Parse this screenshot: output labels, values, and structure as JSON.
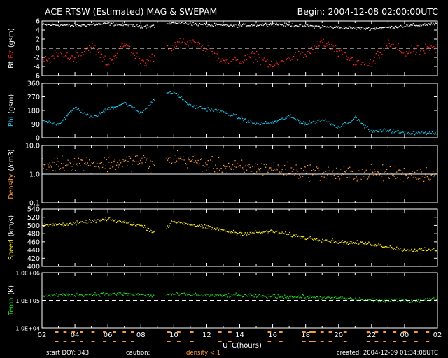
{
  "header": {
    "title": "ACE RTSW (Estimated) MAG & SWEPAM",
    "begin": "Begin: 2004-12-08 02:00:00UTC"
  },
  "footer": {
    "start_doy": "start DOY: 343",
    "caution": "caution:",
    "density_note": "density < 1",
    "created": "created: 2004-12-09 01:34:06UTC",
    "xlabel": "UTC(hours)"
  },
  "colors": {
    "background": "#000000",
    "axes": "#ffffff",
    "bt": "#ffffff",
    "bz": "#ff2a2a",
    "phi": "#22c6f0",
    "density": "#ff9a3c",
    "speed": "#ffee22",
    "temp": "#22dd22",
    "caution": "#ff9a3c"
  },
  "chart_data": [
    {
      "type": "scatter",
      "panel": "mag",
      "ylabel_parts": [
        "Bt",
        "Bz",
        "(gsm)"
      ],
      "ylim": [
        -6,
        6
      ],
      "yticks": [
        -6,
        -4,
        -2,
        0,
        2,
        4,
        6
      ],
      "reference_line": 0,
      "xlim": [
        0,
        24
      ],
      "series": [
        {
          "name": "Bt",
          "color_key": "bt",
          "noise": 0.5,
          "x": [
            0,
            2,
            4,
            6,
            7,
            8,
            10,
            12,
            14,
            16,
            18,
            20,
            22,
            24
          ],
          "y": [
            5.2,
            5.0,
            5.4,
            4.8,
            4.9,
            5.6,
            5.1,
            5.0,
            5.3,
            4.9,
            4.6,
            4.3,
            4.9,
            5.4
          ]
        },
        {
          "name": "Bz",
          "color_key": "bz",
          "noise": 1.7,
          "x": [
            0,
            1,
            2,
            3,
            4,
            5,
            6,
            7,
            8,
            9,
            10,
            11,
            12,
            13,
            14,
            15,
            16,
            17,
            18,
            19,
            20,
            21,
            22,
            23,
            24
          ],
          "y": [
            -3.0,
            -1.5,
            -2.0,
            0.5,
            -3.5,
            1.0,
            -3.0,
            -2.0,
            0.5,
            1.5,
            -0.5,
            -2.5,
            -3.0,
            -1.5,
            -4.0,
            -2.0,
            -1.5,
            1.5,
            -1.0,
            -3.0,
            -3.5,
            1.0,
            -1.0,
            -0.5,
            0.0
          ]
        }
      ]
    },
    {
      "type": "scatter",
      "panel": "phi",
      "ylabel_parts": [
        "Phi",
        "(gsm)"
      ],
      "ylim": [
        0,
        360
      ],
      "yticks": [
        0,
        90,
        180,
        270,
        360
      ],
      "xlim": [
        0,
        24
      ],
      "series": [
        {
          "name": "Phi",
          "color_key": "phi",
          "noise": 18,
          "x": [
            0,
            1,
            2,
            3,
            4,
            5,
            6,
            7,
            8,
            9,
            10,
            11,
            12,
            13,
            14,
            15,
            16,
            17,
            18,
            19,
            20,
            21,
            22,
            23,
            24
          ],
          "y": [
            110,
            90,
            200,
            130,
            190,
            230,
            160,
            280,
            300,
            210,
            190,
            170,
            130,
            90,
            100,
            140,
            90,
            120,
            70,
            130,
            40,
            50,
            30,
            35,
            30
          ]
        }
      ]
    },
    {
      "type": "scatter",
      "panel": "density",
      "ylabel_parts": [
        "Density",
        "(/cm3)"
      ],
      "yscale": "log",
      "ylim": [
        0.1,
        10
      ],
      "yticks": [
        0.1,
        1.0,
        10.0
      ],
      "ytick_labels": [
        "0.1",
        "1.0",
        "10.0"
      ],
      "reference_line": 1.0,
      "xlim": [
        0,
        24
      ],
      "series": [
        {
          "name": "Density",
          "color_key": "density",
          "noise": 0.2,
          "x": [
            0,
            2,
            4,
            6,
            7,
            8,
            10,
            12,
            14,
            16,
            18,
            20,
            22,
            24
          ],
          "y": [
            2.0,
            2.5,
            2.2,
            3.0,
            1.5,
            4.0,
            2.0,
            1.6,
            1.5,
            1.2,
            1.0,
            1.1,
            1.0,
            1.0
          ]
        }
      ]
    },
    {
      "type": "scatter",
      "panel": "speed",
      "ylabel_parts": [
        "Speed",
        "(km/s)"
      ],
      "ylim": [
        400,
        540
      ],
      "yticks": [
        400,
        420,
        440,
        460,
        480,
        500,
        520,
        540
      ],
      "xlim": [
        0,
        24
      ],
      "series": [
        {
          "name": "Speed",
          "color_key": "speed",
          "noise": 7,
          "x": [
            0,
            2,
            4,
            6,
            7,
            8,
            10,
            12,
            14,
            16,
            18,
            20,
            22,
            24
          ],
          "y": [
            500,
            505,
            515,
            500,
            480,
            510,
            495,
            480,
            485,
            470,
            460,
            455,
            440,
            440
          ]
        }
      ]
    },
    {
      "type": "scatter",
      "panel": "temp",
      "ylabel_parts": [
        "Temp",
        "(K)"
      ],
      "yscale": "log",
      "ylim": [
        10000,
        1000000
      ],
      "yticks": [
        10000,
        100000,
        1000000
      ],
      "ytick_labels": [
        "1.0E+04",
        "1.0E+05",
        "1.0E+06"
      ],
      "reference_line": 100000,
      "xlim": [
        0,
        24
      ],
      "series": [
        {
          "name": "Temp",
          "color_key": "temp",
          "noise": 0.05,
          "x": [
            0,
            2,
            4,
            6,
            7,
            8,
            10,
            12,
            14,
            16,
            18,
            20,
            22,
            24
          ],
          "y": [
            150000,
            160000,
            170000,
            160000,
            140000,
            170000,
            150000,
            150000,
            140000,
            130000,
            120000,
            100000,
            95000,
            110000
          ]
        }
      ]
    }
  ],
  "x_axis": {
    "ticks": [
      0,
      2,
      4,
      6,
      8,
      10,
      12,
      14,
      16,
      18,
      20,
      22,
      24
    ],
    "tick_labels": [
      "02",
      "04",
      "06",
      "08",
      "10",
      "12",
      "14",
      "16",
      "18",
      "20",
      "22",
      "00",
      "02"
    ]
  },
  "density_caution_hours": [
    [
      0.8,
      1.0
    ],
    [
      1.3,
      1.5
    ],
    [
      1.8,
      2.0
    ],
    [
      2.3,
      2.5
    ],
    [
      3.0,
      3.2
    ],
    [
      3.7,
      3.9
    ],
    [
      4.3,
      4.5
    ],
    [
      4.9,
      5.1
    ],
    [
      5.4,
      5.6
    ],
    [
      7.6,
      7.8
    ],
    [
      8.2,
      8.4
    ],
    [
      9.0,
      9.2
    ],
    [
      10.7,
      10.9
    ],
    [
      11.3,
      11.5
    ],
    [
      13.7,
      13.9
    ],
    [
      14.4,
      14.6
    ],
    [
      15.8,
      16.0
    ],
    [
      16.2,
      16.6
    ],
    [
      16.9,
      17.1
    ],
    [
      17.4,
      17.6
    ],
    [
      18.3,
      18.5
    ],
    [
      19.7,
      19.9
    ],
    [
      20.2,
      20.4
    ],
    [
      20.7,
      20.9
    ],
    [
      21.3,
      21.5
    ],
    [
      21.9,
      22.1
    ],
    [
      22.6,
      22.8
    ],
    [
      23.3,
      23.5
    ]
  ]
}
